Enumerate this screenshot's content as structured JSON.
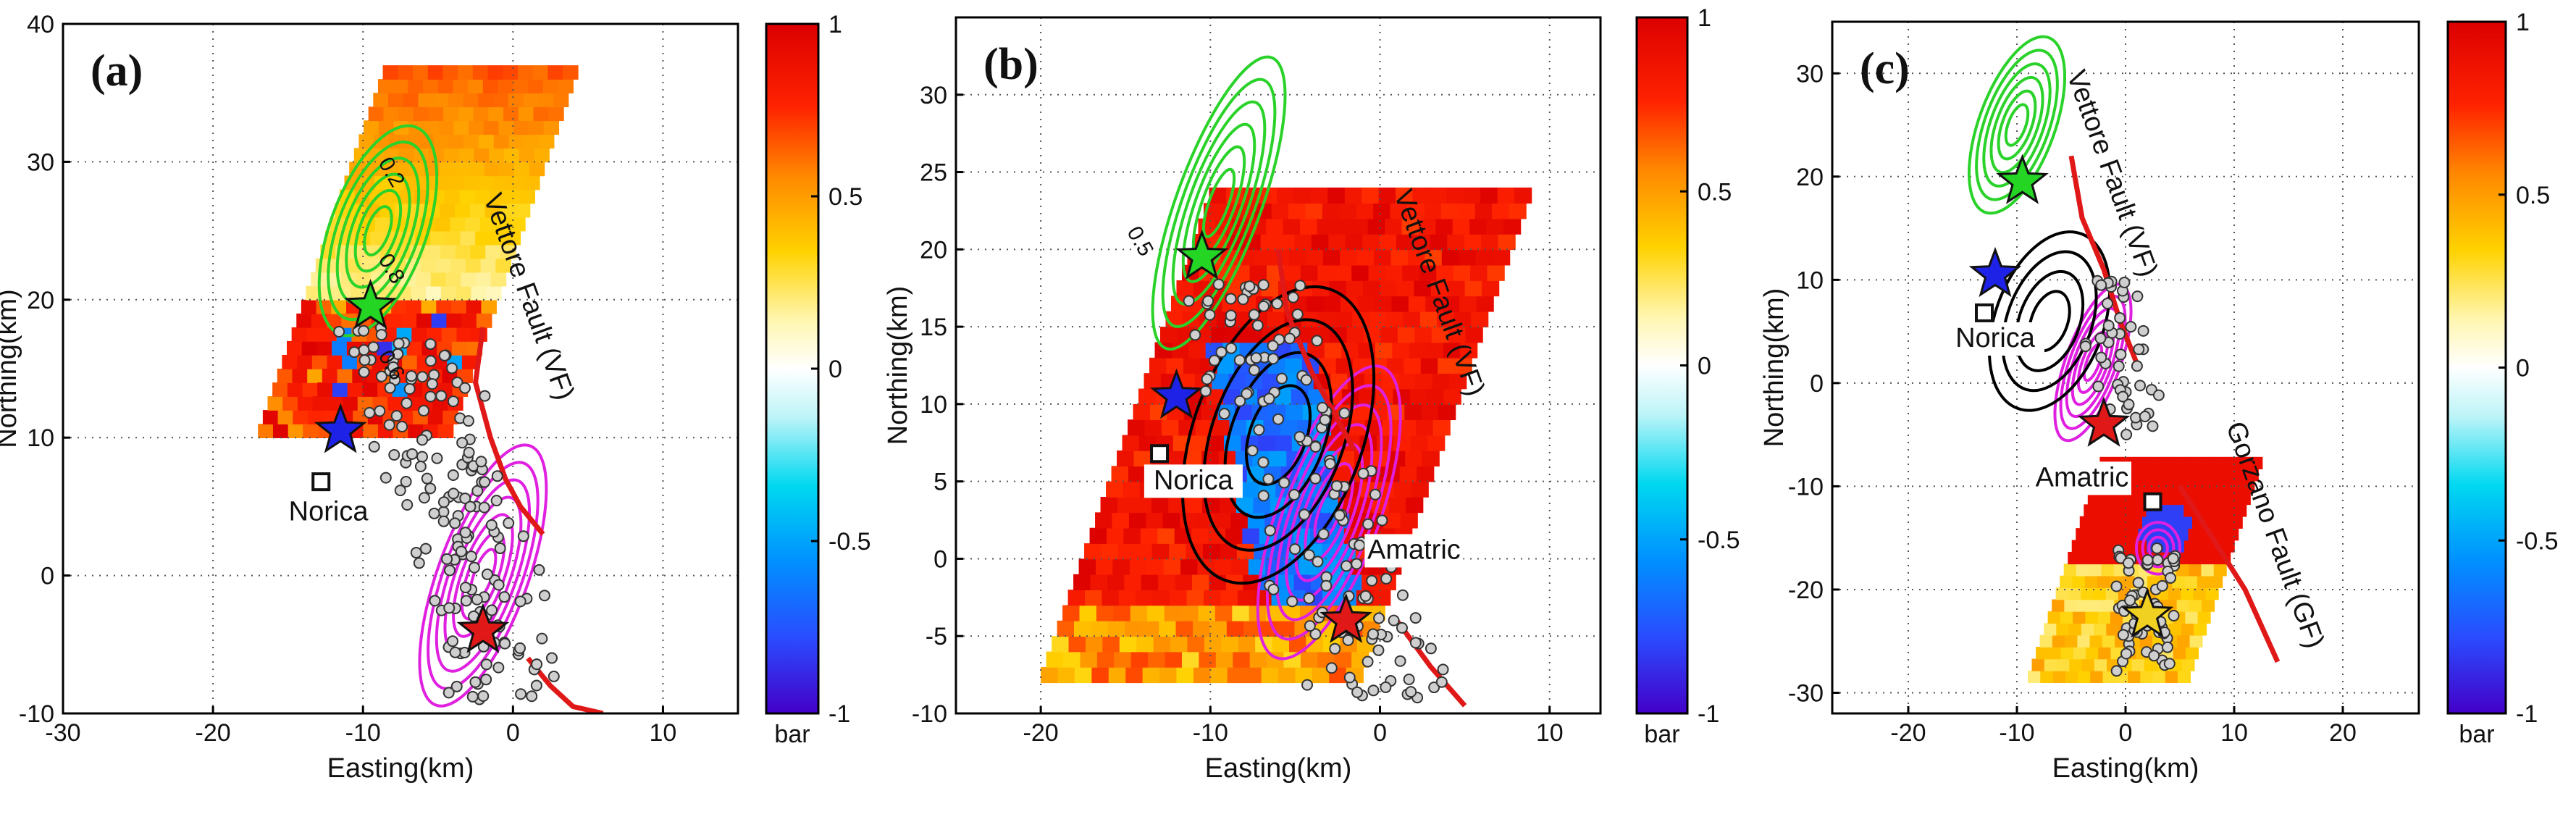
{
  "figure": "Coulomb stress change maps with seismicity, slip contours, epicenters and faults",
  "chart_data": [
    {
      "type": "heatmap",
      "panel": "(a)",
      "xlabel": "Easting(km)",
      "ylabel": "Northing(km)",
      "xlim": [
        -30,
        15
      ],
      "ylim": [
        -10,
        40
      ],
      "xticks": [
        -30,
        -20,
        -10,
        0,
        10
      ],
      "yticks": [
        -10,
        0,
        10,
        20,
        30,
        40
      ],
      "grid": true,
      "colorbar": {
        "min": -1,
        "max": 1,
        "ticks": [
          1,
          0.5,
          0,
          -0.5,
          -1
        ],
        "tick_labels": [
          "1",
          "0.5",
          "0",
          "-0.5",
          "-1"
        ],
        "unit": "bar"
      },
      "contour_labels": [
        "0.2",
        "0.8",
        "0.6"
      ],
      "labels": [
        {
          "text": "Vettore Fault (VF)",
          "x": 0.5,
          "y": 20,
          "rotation": 70
        },
        {
          "text": "Norica",
          "x": -12.3,
          "y": 4
        }
      ],
      "markers": [
        {
          "kind": "star",
          "color": "#1e22e6",
          "x": -11.5,
          "y": 10.5
        },
        {
          "kind": "star",
          "color": "#24d524",
          "x": -9.5,
          "y": 19.5
        },
        {
          "kind": "star",
          "color": "#e01818",
          "x": -2,
          "y": -4
        },
        {
          "kind": "square",
          "label": "Norica",
          "x": -12.8,
          "y": 6.8
        }
      ],
      "faults": [
        {
          "name": "VF",
          "points": [
            [
              -2,
              18
            ],
            [
              -2.5,
              14
            ],
            [
              -1.5,
              10
            ],
            [
              -0.5,
              7
            ],
            [
              0.5,
              5
            ],
            [
              2,
              3
            ]
          ]
        },
        {
          "name": "south segment",
          "points": [
            [
              1,
              -6
            ],
            [
              2.5,
              -8
            ],
            [
              4,
              -9.5
            ],
            [
              6,
              -10
            ]
          ]
        }
      ],
      "stress_patch": {
        "region": [
          [
            -14,
            25
          ],
          [
            -7,
            23
          ],
          [
            -4,
            18
          ],
          [
            -3,
            13
          ],
          [
            -14,
            11
          ]
        ]
      }
    },
    {
      "type": "heatmap",
      "panel": "(b)",
      "xlabel": "Easting(km)",
      "ylabel": "Northing(km)",
      "xlim": [
        -25,
        13
      ],
      "ylim": [
        -10,
        35
      ],
      "xticks": [
        -20,
        -10,
        0,
        10
      ],
      "yticks": [
        -10,
        -5,
        0,
        5,
        10,
        15,
        20,
        25,
        30
      ],
      "grid": true,
      "colorbar": {
        "min": -1,
        "max": 1,
        "ticks": [
          1,
          0.5,
          0,
          -0.5,
          -1
        ],
        "tick_labels": [
          "1",
          "0.5",
          "0",
          "-0.5",
          "-1"
        ],
        "unit": "bar"
      },
      "contour_labels": [
        "0.5"
      ],
      "labels": [
        {
          "text": "Vettore Fault (VF)",
          "x": 3,
          "y": 17,
          "rotation": 70
        },
        {
          "text": "Norica",
          "x": -11,
          "y": 4.5
        },
        {
          "text": "Amatric",
          "x": 2,
          "y": 0
        }
      ],
      "markers": [
        {
          "kind": "star",
          "color": "#1e22e6",
          "x": -12,
          "y": 10.5
        },
        {
          "kind": "star",
          "color": "#24d524",
          "x": -10.5,
          "y": 19.5
        },
        {
          "kind": "star",
          "color": "#e01818",
          "x": -2,
          "y": -4
        },
        {
          "kind": "square",
          "label": "Norica",
          "x": -13,
          "y": 6.8
        }
      ],
      "faults": [
        {
          "name": "VF",
          "points": [
            [
              -6,
              20
            ],
            [
              -5.5,
              16
            ],
            [
              -4,
              12
            ],
            [
              -2.5,
              9
            ],
            [
              -1.5,
              7
            ]
          ]
        },
        {
          "name": "south segment",
          "points": [
            [
              1,
              -4
            ],
            [
              3,
              -7
            ],
            [
              5,
              -9.5
            ]
          ]
        }
      ]
    },
    {
      "type": "heatmap",
      "panel": "(c)",
      "xlabel": "Easting(km)",
      "ylabel": "Northing(km)",
      "xlim": [
        -27,
        27
      ],
      "ylim": [
        -32,
        35
      ],
      "xticks": [
        -20,
        -10,
        0,
        10,
        20
      ],
      "yticks": [
        -30,
        -20,
        -10,
        0,
        10,
        20,
        30
      ],
      "grid": true,
      "colorbar": {
        "min": -1,
        "max": 1,
        "ticks": [
          1,
          0.5,
          0,
          -0.5,
          -1
        ],
        "tick_labels": [
          "1",
          "0.5",
          "0",
          "-0.5",
          "-1"
        ],
        "unit": "bar"
      },
      "labels": [
        {
          "text": "Vettore Fault (VF)",
          "x": -2,
          "y": 20,
          "rotation": 70
        },
        {
          "text": "Norica",
          "x": -12,
          "y": 3.5
        },
        {
          "text": "Amatric",
          "x": -4,
          "y": -10
        },
        {
          "text": "Gorzano Fault (GF)",
          "x": 13,
          "y": -15,
          "rotation": 70
        }
      ],
      "markers": [
        {
          "kind": "star",
          "color": "#1e22e6",
          "x": -12,
          "y": 10.5
        },
        {
          "kind": "star",
          "color": "#24d524",
          "x": -9.5,
          "y": 19.5
        },
        {
          "kind": "star",
          "color": "#e01818",
          "x": -2,
          "y": -4
        },
        {
          "kind": "star",
          "color": "#f0d020",
          "x": 2,
          "y": -22.5
        },
        {
          "kind": "square",
          "label": "Norica",
          "x": -13,
          "y": 6.8
        },
        {
          "kind": "square",
          "label": "Amatric",
          "x": 2.5,
          "y": -11.5
        }
      ],
      "faults": [
        {
          "name": "VF",
          "points": [
            [
              -5,
              22
            ],
            [
              -4,
              16
            ],
            [
              -2,
              11
            ],
            [
              -0.5,
              6
            ],
            [
              1,
              2
            ]
          ]
        },
        {
          "name": "GF",
          "points": [
            [
              5,
              -10
            ],
            [
              8,
              -15
            ],
            [
              11,
              -20
            ],
            [
              14,
              -27
            ]
          ]
        }
      ]
    }
  ]
}
